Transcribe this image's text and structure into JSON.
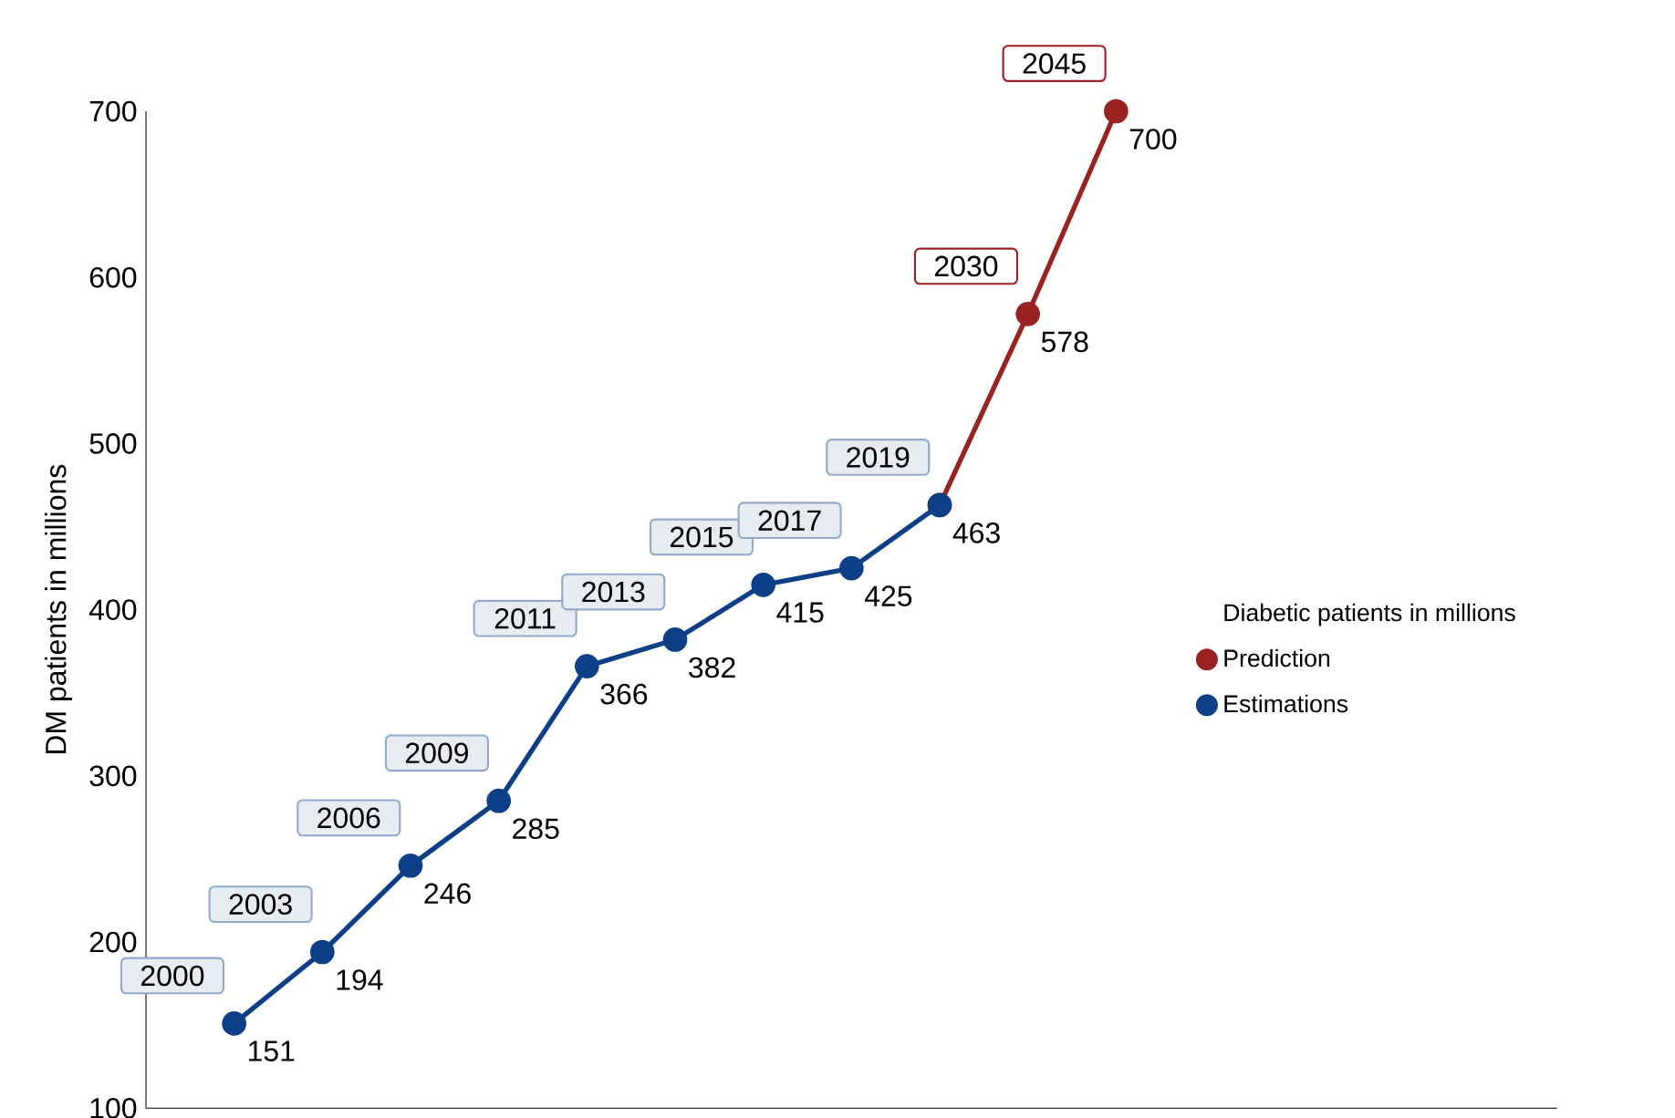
{
  "chart_data": {
    "type": "line",
    "ylabel": "DM patients  in millions",
    "legend_title": "Diabetic patients in millions",
    "categories": [
      null,
      null,
      null,
      null,
      null,
      null,
      null,
      null,
      null,
      null,
      null
    ],
    "series": [
      {
        "name": "Estimations",
        "color": "#0d3f87",
        "values": [
          151,
          194,
          246,
          285,
          366,
          382,
          415,
          425,
          463,
          null,
          null
        ],
        "value_labels": [
          "151",
          "194",
          "246",
          "285",
          "366",
          "382",
          "415",
          "425",
          "463",
          null,
          null
        ]
      },
      {
        "name": "Prediction",
        "color": "#9b2222",
        "values": [
          null,
          null,
          null,
          null,
          null,
          null,
          null,
          null,
          463,
          578,
          700
        ],
        "value_labels": [
          null,
          null,
          null,
          null,
          null,
          null,
          null,
          null,
          null,
          "578",
          "700"
        ]
      }
    ],
    "annotations": [
      "2000",
      "2003",
      "2006",
      "2009",
      "2011",
      "2013",
      "2015",
      "2017",
      "2019",
      "2030",
      "2045"
    ],
    "ylim": [
      100,
      700
    ],
    "yticks": [
      100,
      200,
      300,
      400,
      500,
      600,
      700
    ],
    "tick_labels": "y",
    "legend": "right",
    "marker": "circle",
    "line_style": "solid",
    "grid": false
  }
}
